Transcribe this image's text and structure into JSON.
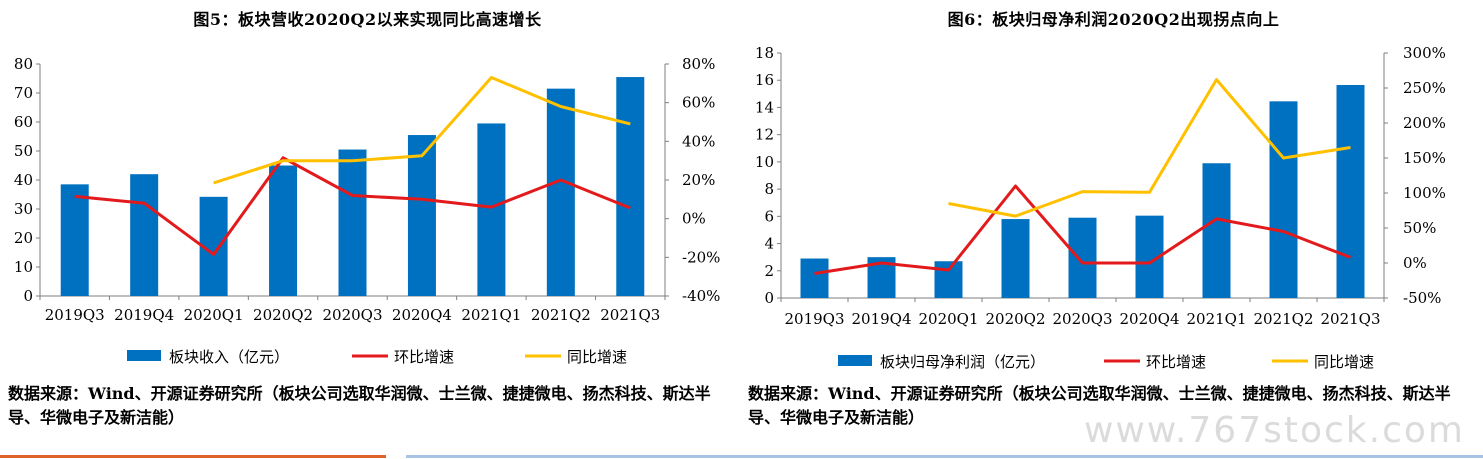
{
  "figures": [
    {
      "title": "图5：板块营收2020Q2以来实现同比高速增长",
      "source": "数据来源：Wind、开源证券研究所（板块公司选取华润微、士兰微、捷捷微电、扬杰科技、斯达半导、华微电子及新洁能）"
    },
    {
      "title": "图6：板块归母净利润2020Q2出现拐点向上",
      "source": "数据来源：Wind、开源证券研究所（板块公司选取华润微、士兰微、捷捷微电、扬杰科技、斯达半导、华微电子及新洁能）"
    }
  ],
  "watermark": "www.767stock.com",
  "colors": {
    "bar": "#0070c0",
    "qoq": "#e31a1c",
    "yoy": "#ffc000",
    "axis": "#7f7f7f"
  },
  "chart_data": [
    {
      "type": "bar",
      "title": "图5：板块营收2020Q2以来实现同比高速增长",
      "categories": [
        "2019Q3",
        "2019Q4",
        "2020Q1",
        "2020Q2",
        "2020Q3",
        "2020Q4",
        "2021Q1",
        "2021Q2",
        "2021Q3"
      ],
      "left_axis": {
        "ylim": [
          0,
          80
        ],
        "ticks": [
          "0",
          "10",
          "20",
          "30",
          "40",
          "50",
          "60",
          "70",
          "80"
        ]
      },
      "right_axis": {
        "ylim": [
          -40,
          80
        ],
        "ticks": [
          "-40%",
          "-20%",
          "0%",
          "20%",
          "40%",
          "60%",
          "80%"
        ]
      },
      "series": [
        {
          "name": "板块收入（亿元）",
          "type": "bar",
          "axis": "left",
          "values": [
            38.5,
            42,
            34.2,
            45,
            50.5,
            55.5,
            59.5,
            71.5,
            75.5
          ]
        },
        {
          "name": "环比增速",
          "type": "line",
          "axis": "right",
          "values": [
            11.5,
            8,
            -18.5,
            31.5,
            12,
            10,
            6,
            20,
            5.5
          ]
        },
        {
          "name": "同比增速",
          "type": "line",
          "axis": "right",
          "values": [
            null,
            null,
            18.5,
            30,
            30,
            32.5,
            73,
            58,
            49
          ]
        }
      ]
    },
    {
      "type": "bar",
      "title": "图6：板块归母净利润2020Q2出现拐点向上",
      "categories": [
        "2019Q3",
        "2019Q4",
        "2020Q1",
        "2020Q2",
        "2020Q3",
        "2020Q4",
        "2021Q1",
        "2021Q2",
        "2021Q3"
      ],
      "left_axis": {
        "ylim": [
          0,
          18
        ],
        "ticks": [
          "0",
          "2",
          "4",
          "6",
          "8",
          "10",
          "12",
          "14",
          "16",
          "18"
        ]
      },
      "right_axis": {
        "ylim": [
          -50,
          300
        ],
        "ticks": [
          "-50%",
          "0%",
          "50%",
          "100%",
          "150%",
          "200%",
          "250%",
          "300%"
        ]
      },
      "series": [
        {
          "name": "板块归母净利润（亿元）",
          "type": "bar",
          "axis": "left",
          "values": [
            2.9,
            3.0,
            2.7,
            5.8,
            5.9,
            6.05,
            9.9,
            14.45,
            15.65
          ]
        },
        {
          "name": "环比增速",
          "type": "line",
          "axis": "right",
          "values": [
            -15,
            0,
            -10,
            110,
            0,
            0,
            63,
            45,
            8
          ]
        },
        {
          "name": "同比增速",
          "type": "line",
          "axis": "right",
          "values": [
            null,
            null,
            85,
            67,
            102,
            101,
            262,
            150,
            165
          ]
        }
      ]
    }
  ]
}
